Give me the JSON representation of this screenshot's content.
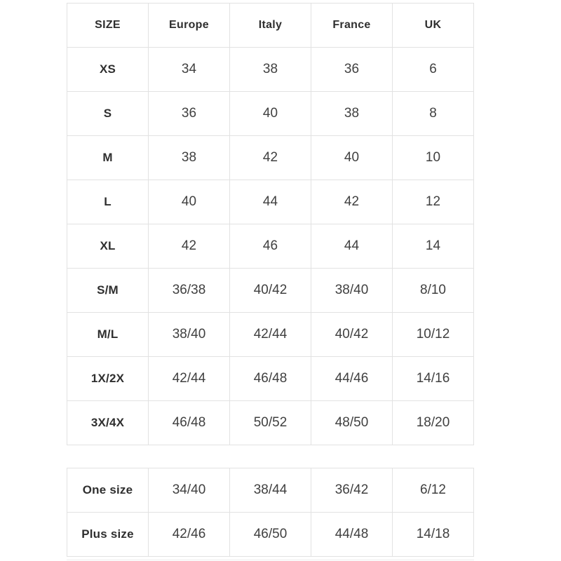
{
  "colors": {
    "background": "#ffffff",
    "border": "#e2e2e2",
    "header_text": "#2f2f2f",
    "cell_text": "#404040"
  },
  "chart_data": {
    "type": "table",
    "columns": [
      "SIZE",
      "Europe",
      "Italy",
      "France",
      "UK"
    ],
    "rows": [
      [
        "XS",
        "34",
        "38",
        "36",
        "6"
      ],
      [
        "S",
        "36",
        "40",
        "38",
        "8"
      ],
      [
        "M",
        "38",
        "42",
        "40",
        "10"
      ],
      [
        "L",
        "40",
        "44",
        "42",
        "12"
      ],
      [
        "XL",
        "42",
        "46",
        "44",
        "14"
      ],
      [
        "S/M",
        "36/38",
        "40/42",
        "38/40",
        "8/10"
      ],
      [
        "M/L",
        "38/40",
        "42/44",
        "40/42",
        "10/12"
      ],
      [
        "1X/2X",
        "42/44",
        "46/48",
        "44/46",
        "14/16"
      ],
      [
        "3X/4X",
        "46/48",
        "50/52",
        "48/50",
        "18/20"
      ]
    ],
    "secondary_rows": [
      [
        "One size",
        "34/40",
        "38/44",
        "36/42",
        "6/12"
      ],
      [
        "Plus size",
        "42/46",
        "46/50",
        "44/48",
        "14/18"
      ]
    ]
  }
}
